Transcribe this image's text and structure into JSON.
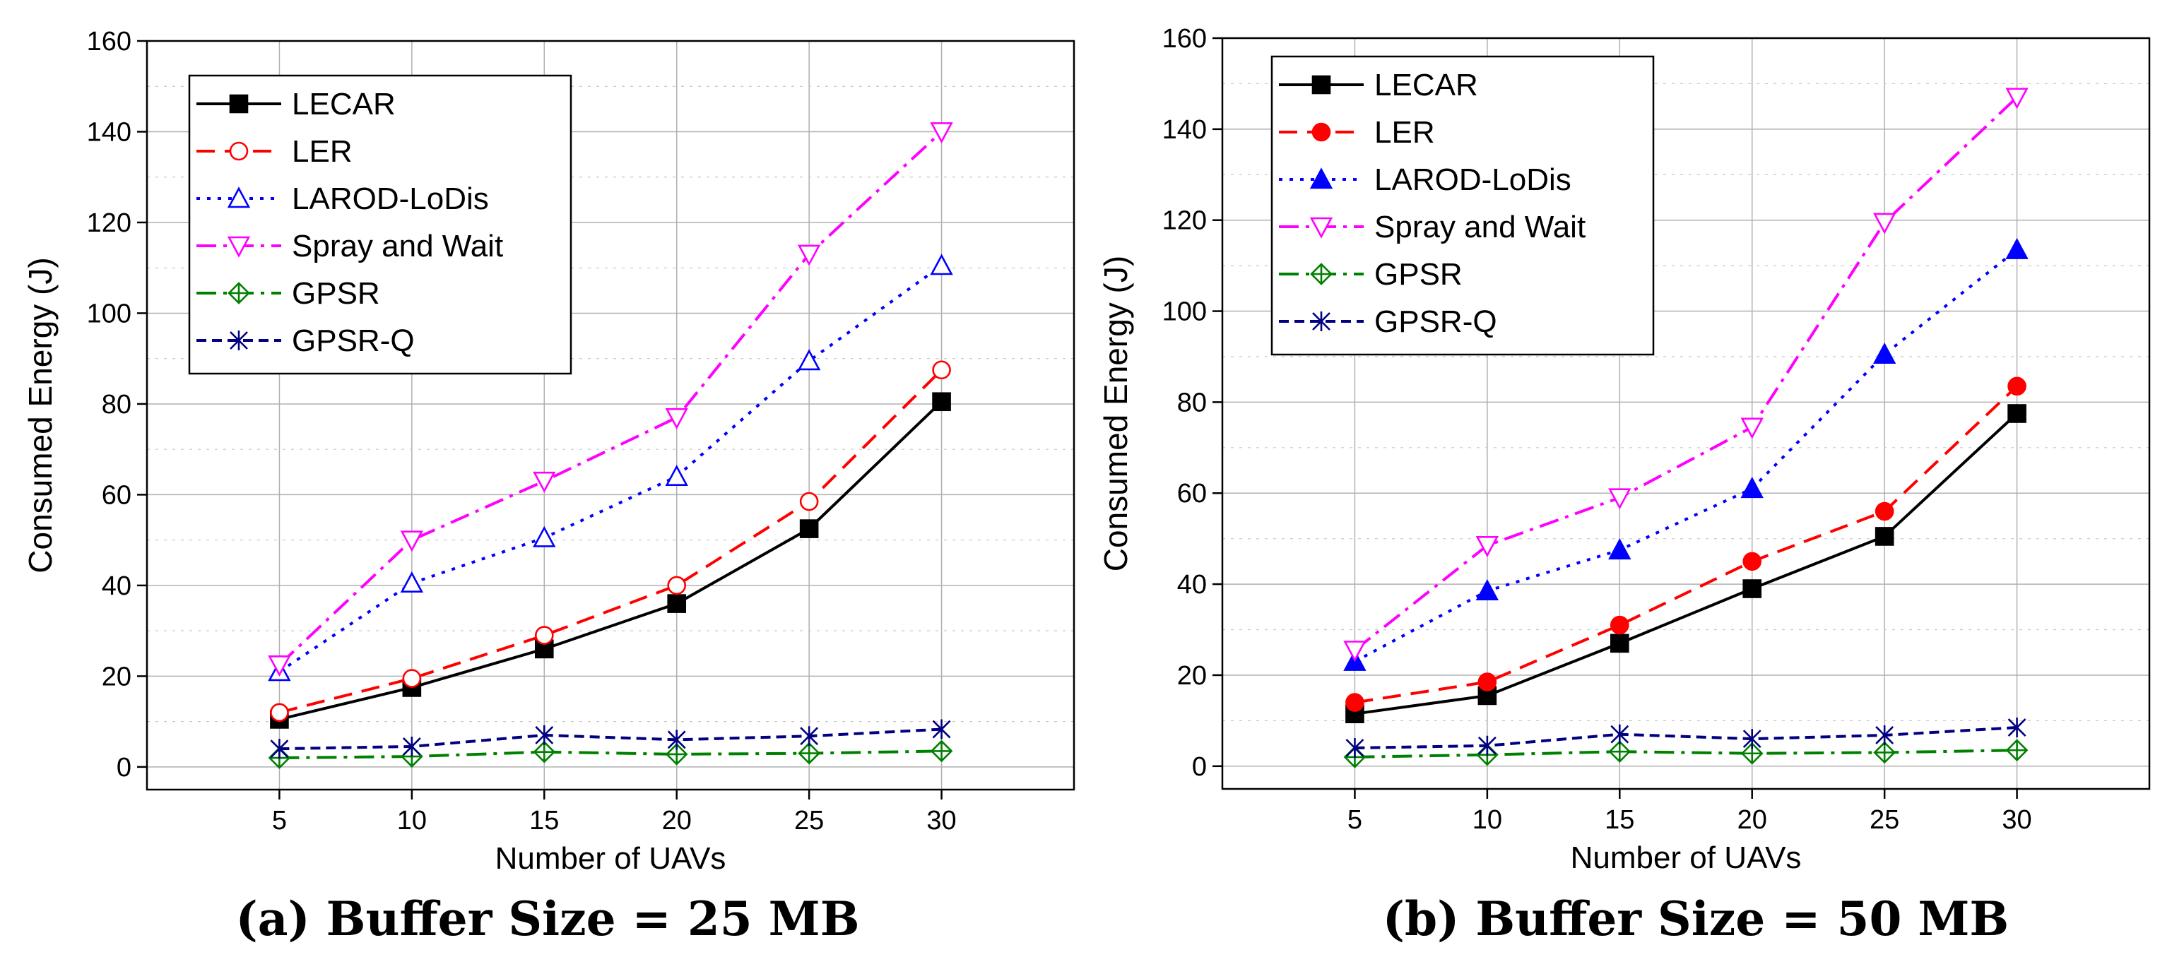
{
  "chart_data": [
    {
      "type": "line",
      "id": "a",
      "title": "",
      "xlabel": "Number of UAVs",
      "ylabel": "Consumed Energy (J)",
      "x": [
        5,
        10,
        15,
        20,
        25,
        30
      ],
      "xlim": [
        0,
        35
      ],
      "ylim": [
        -5,
        160
      ],
      "yticks": [
        0,
        20,
        40,
        60,
        80,
        100,
        120,
        140,
        160
      ],
      "grid": true,
      "legend_position": "top-left",
      "caption": "(a) Buffer Size = 25 MB",
      "series": [
        {
          "name": "LECAR",
          "values": [
            10.5,
            17.5,
            26,
            36,
            52.5,
            80.5
          ],
          "color": "#000000",
          "dash": "solid",
          "marker": "square",
          "filled": true
        },
        {
          "name": "LER",
          "values": [
            12,
            19.5,
            29,
            40,
            58.5,
            87.5
          ],
          "color": "#ff0000",
          "dash": "dash",
          "marker": "circle",
          "filled": false
        },
        {
          "name": "LAROD-LoDis",
          "values": [
            21,
            40.5,
            50.5,
            64,
            89.5,
            110.5
          ],
          "color": "#0000ff",
          "dash": "dot",
          "marker": "triangle-up",
          "filled": false
        },
        {
          "name": "Spray and Wait",
          "values": [
            22.5,
            50,
            63,
            77,
            113,
            140
          ],
          "color": "#ff00ff",
          "dash": "dashdot",
          "marker": "triangle-down",
          "filled": false
        },
        {
          "name": "GPSR",
          "values": [
            2,
            2.3,
            3.3,
            2.8,
            3,
            3.5
          ],
          "color": "#008000",
          "dash": "dashdot",
          "marker": "diamond-plus",
          "filled": false
        },
        {
          "name": "GPSR-Q",
          "values": [
            4,
            4.5,
            7,
            6,
            6.8,
            8.3
          ],
          "color": "#000080",
          "dash": "shortdash",
          "marker": "star",
          "filled": false
        }
      ]
    },
    {
      "type": "line",
      "id": "b",
      "title": "",
      "xlabel": "Number of UAVs",
      "ylabel": "Consumed Energy (J)",
      "x": [
        5,
        10,
        15,
        20,
        25,
        30
      ],
      "xlim": [
        0,
        35
      ],
      "ylim": [
        -5,
        160
      ],
      "yticks": [
        0,
        20,
        40,
        60,
        80,
        100,
        120,
        140,
        160
      ],
      "grid": true,
      "legend_position": "top-left",
      "caption": "(b) Buffer Size = 50 MB",
      "series": [
        {
          "name": "LECAR",
          "values": [
            11.5,
            15.5,
            27,
            39,
            50.5,
            77.5
          ],
          "color": "#000000",
          "dash": "solid",
          "marker": "square",
          "filled": true
        },
        {
          "name": "LER",
          "values": [
            14,
            18.5,
            31,
            45,
            56,
            83.5
          ],
          "color": "#ff0000",
          "dash": "dash",
          "marker": "circle",
          "filled": true
        },
        {
          "name": "LAROD-LoDis",
          "values": [
            23,
            38.5,
            47.5,
            61,
            90.5,
            113.5
          ],
          "color": "#0000ff",
          "dash": "dot",
          "marker": "triangle-up",
          "filled": true
        },
        {
          "name": "Spray and Wait",
          "values": [
            25.5,
            48.5,
            59,
            74.5,
            119.5,
            147
          ],
          "color": "#ff00ff",
          "dash": "dashdot",
          "marker": "triangle-down",
          "filled": false
        },
        {
          "name": "GPSR",
          "values": [
            2,
            2.5,
            3.2,
            2.8,
            3,
            3.5
          ],
          "color": "#008000",
          "dash": "dashdot",
          "marker": "diamond-plus",
          "filled": false
        },
        {
          "name": "GPSR-Q",
          "values": [
            4,
            4.5,
            7,
            6,
            6.8,
            8.5
          ],
          "color": "#000080",
          "dash": "shortdash",
          "marker": "star",
          "filled": false
        }
      ]
    }
  ]
}
